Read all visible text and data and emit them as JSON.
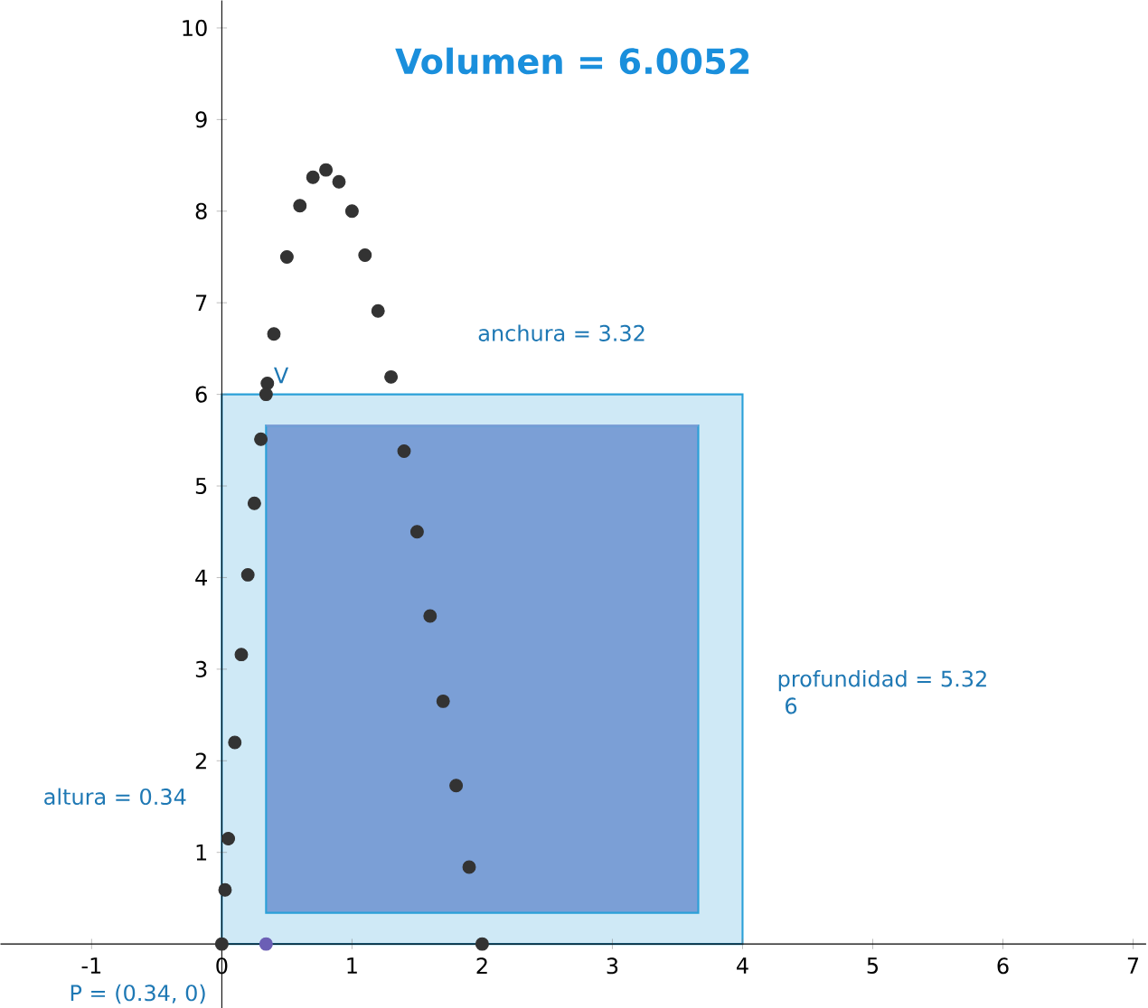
{
  "chart_data": {
    "type": "scatter",
    "title": "Volumen = 6.0052",
    "xlim": [
      -1.7,
      7.1
    ],
    "ylim": [
      -0.7,
      10.3
    ],
    "xticks": [
      -1,
      0,
      1,
      2,
      3,
      4,
      5,
      6,
      7
    ],
    "yticks": [
      1,
      2,
      3,
      4,
      5,
      6,
      7,
      8,
      9,
      10
    ],
    "series": [
      {
        "type": "area",
        "color": "#cfe9f6",
        "x": [
          0,
          4
        ],
        "values": [
          6,
          6
        ]
      },
      {
        "type": "line",
        "color": "#7b9fd6",
        "x": [
          0.34,
          3.66
        ],
        "values": [
          5.66,
          5.66
        ],
        "lower": [
          0.34,
          0.34
        ],
        "upper": [
          5.66,
          5.66
        ]
      },
      {
        "color": "#333333",
        "x": [
          0,
          0.025,
          0.05,
          0.1,
          0.15,
          0.2,
          0.25,
          0.3,
          0.35,
          0.4,
          0.5,
          0.6,
          0.7,
          0.8,
          0.9,
          1.0,
          1.1,
          1.2,
          1.3,
          1.4,
          1.5,
          1.6,
          1.7,
          1.8,
          1.9,
          2.0
        ],
        "values": [
          0,
          0.59,
          1.15,
          2.2,
          3.16,
          4.03,
          4.81,
          5.51,
          6.12,
          6.66,
          7.5,
          8.06,
          8.37,
          8.45,
          8.32,
          8.0,
          7.52,
          6.91,
          6.19,
          5.38,
          4.5,
          3.58,
          2.65,
          1.73,
          0.84,
          0
        ]
      },
      {
        "color": "#6b5fb5",
        "x": [
          0.34
        ],
        "values": [
          0
        ]
      },
      {
        "color": "#333333",
        "x": [
          0.34
        ],
        "values": [
          6.0
        ]
      }
    ],
    "annotations": [
      "anchura = 3.32",
      "profundidad = 5.32",
      "6",
      "altura = 0.34",
      "P = (0.34, 0)",
      "V"
    ]
  }
}
